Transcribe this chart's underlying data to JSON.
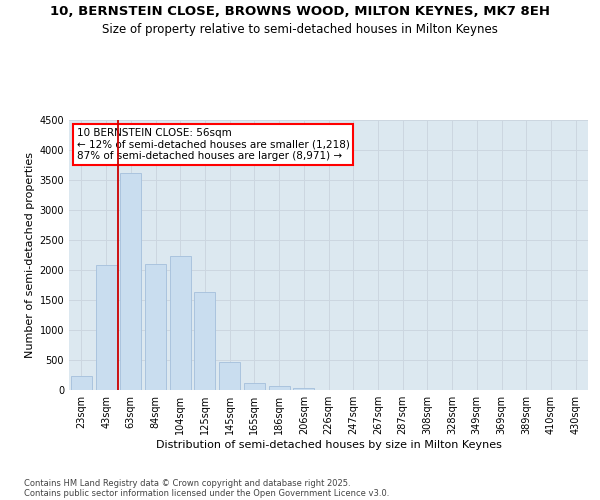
{
  "title_line1": "10, BERNSTEIN CLOSE, BROWNS WOOD, MILTON KEYNES, MK7 8EH",
  "title_line2": "Size of property relative to semi-detached houses in Milton Keynes",
  "xlabel": "Distribution of semi-detached houses by size in Milton Keynes",
  "ylabel": "Number of semi-detached properties",
  "categories": [
    "23sqm",
    "43sqm",
    "63sqm",
    "84sqm",
    "104sqm",
    "125sqm",
    "145sqm",
    "165sqm",
    "186sqm",
    "206sqm",
    "226sqm",
    "247sqm",
    "267sqm",
    "287sqm",
    "308sqm",
    "328sqm",
    "349sqm",
    "369sqm",
    "389sqm",
    "410sqm",
    "430sqm"
  ],
  "values": [
    230,
    2080,
    3620,
    2100,
    2230,
    1630,
    460,
    110,
    70,
    40,
    0,
    0,
    0,
    0,
    0,
    0,
    0,
    0,
    0,
    0,
    0
  ],
  "bar_color": "#c9ddef",
  "bar_edgecolor": "#aac4de",
  "grid_color": "#ccd6e0",
  "background_color": "#dce8f0",
  "vline_color": "#cc0000",
  "vline_pos": 1.5,
  "ann_title": "10 BERNSTEIN CLOSE: 56sqm",
  "ann_smaller": "← 12% of semi-detached houses are smaller (1,218)",
  "ann_larger": "87% of semi-detached houses are larger (8,971) →",
  "ylim": [
    0,
    4500
  ],
  "yticks": [
    0,
    500,
    1000,
    1500,
    2000,
    2500,
    3000,
    3500,
    4000,
    4500
  ],
  "footnote_line1": "Contains HM Land Registry data © Crown copyright and database right 2025.",
  "footnote_line2": "Contains public sector information licensed under the Open Government Licence v3.0.",
  "title_fontsize": 9.5,
  "subtitle_fontsize": 8.5,
  "ylabel_fontsize": 8,
  "xlabel_fontsize": 8,
  "tick_fontsize": 7,
  "ann_fontsize": 7.5,
  "footnote_fontsize": 6
}
